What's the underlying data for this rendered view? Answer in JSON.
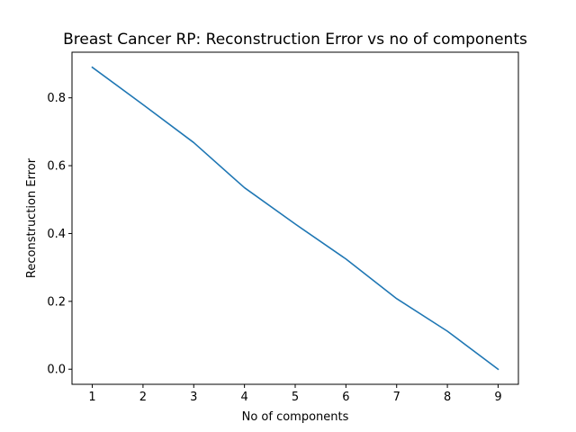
{
  "chart_data": {
    "type": "line",
    "title": "Breast Cancer RP: Reconstruction Error vs no of components",
    "xlabel": "No of components",
    "ylabel": "Reconstruction Error",
    "x": [
      1,
      2,
      3,
      4,
      5,
      6,
      7,
      8,
      9
    ],
    "xticks": [
      "1",
      "2",
      "3",
      "4",
      "5",
      "6",
      "7",
      "8",
      "9"
    ],
    "yticks": [
      "0.0",
      "0.2",
      "0.4",
      "0.6",
      "0.8"
    ],
    "xlim": [
      0.6,
      9.4
    ],
    "ylim": [
      -0.0445,
      0.9345
    ],
    "grid": false,
    "series": [
      {
        "color": "#1f77b4",
        "values": [
          0.89,
          0.78,
          0.668,
          0.535,
          0.428,
          0.325,
          0.208,
          0.112,
          0.0
        ]
      }
    ]
  }
}
